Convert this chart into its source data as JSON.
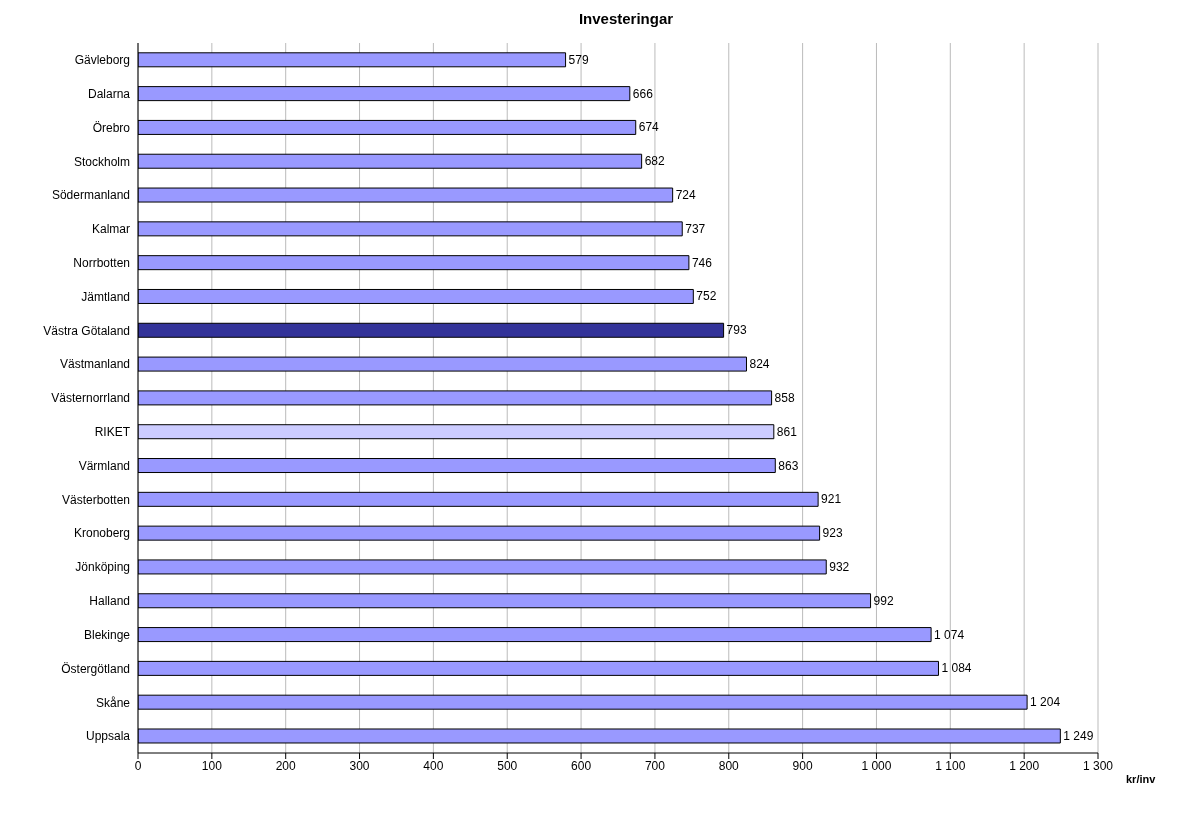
{
  "chart_data": {
    "type": "bar",
    "orientation": "horizontal",
    "title": "Investeringar",
    "xlabel": "kr/inv",
    "categories": [
      "Gävleborg",
      "Dalarna",
      "Örebro",
      "Stockholm",
      "Södermanland",
      "Kalmar",
      "Norrbotten",
      "Jämtland",
      "Västra Götaland",
      "Västmanland",
      "Västernorrland",
      "RIKET",
      "Värmland",
      "Västerbotten",
      "Kronoberg",
      "Jönköping",
      "Halland",
      "Blekinge",
      "Östergötland",
      "Skåne",
      "Uppsala"
    ],
    "values": [
      579,
      666,
      674,
      682,
      724,
      737,
      746,
      752,
      793,
      824,
      858,
      861,
      863,
      921,
      923,
      932,
      992,
      1074,
      1084,
      1204,
      1249
    ],
    "value_labels": [
      "579",
      "666",
      "674",
      "682",
      "724",
      "737",
      "746",
      "752",
      "793",
      "824",
      "858",
      "861",
      "863",
      "921",
      "923",
      "932",
      "992",
      "1 074",
      "1 084",
      "1 204",
      "1 249"
    ],
    "colors": [
      "#9999ff",
      "#9999ff",
      "#9999ff",
      "#9999ff",
      "#9999ff",
      "#9999ff",
      "#9999ff",
      "#9999ff",
      "#333399",
      "#9999ff",
      "#9999ff",
      "#ccccff",
      "#9999ff",
      "#9999ff",
      "#9999ff",
      "#9999ff",
      "#9999ff",
      "#9999ff",
      "#9999ff",
      "#9999ff",
      "#9999ff"
    ],
    "xlim": [
      0,
      1300
    ],
    "xticks": [
      0,
      100,
      200,
      300,
      400,
      500,
      600,
      700,
      800,
      900,
      {
        "value": 1000,
        "label": "1 000"
      },
      {
        "value": 1100,
        "label": "1 100"
      },
      {
        "value": 1200,
        "label": "1 200"
      },
      {
        "value": 1300,
        "label": "1 300"
      }
    ],
    "grid": "x"
  }
}
